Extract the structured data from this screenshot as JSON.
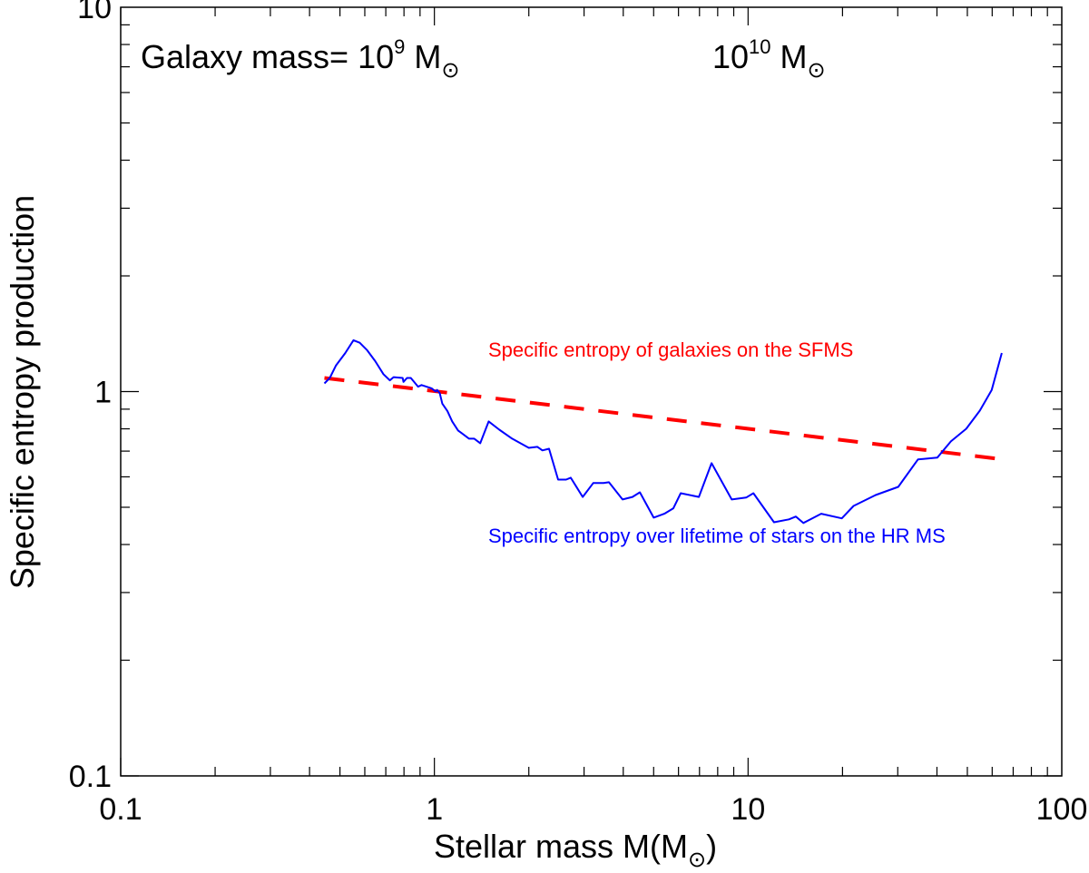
{
  "chart_data": {
    "type": "line",
    "xlabel": {
      "text": "Stellar mass M(M",
      "symbol": "⊙",
      "close": ")"
    },
    "ylabel": "Specific entropy production",
    "xscale": "log",
    "yscale": "log",
    "xlim": [
      0.1,
      100
    ],
    "ylim": [
      0.1,
      10
    ],
    "xticks": [
      "0.1",
      "1",
      "10",
      "100"
    ],
    "yticks": [
      "0.1",
      "1",
      "10"
    ],
    "grid": false,
    "annotations": [
      {
        "text": "Galaxy mass= 10",
        "exp": "9",
        "unit": "M",
        "symbol": "⊙"
      },
      {
        "text": "10",
        "exp": "10",
        "unit": "M",
        "symbol": "⊙"
      }
    ],
    "series": [
      {
        "name": "Specific entropy of galaxies on the SFMS",
        "color": "#ff0000",
        "style": "dashed",
        "x": [
          0.446,
          64.4
        ],
        "y": [
          1.085,
          0.667
        ]
      },
      {
        "name": "Specific entropy over lifetime of stars on the HR MS",
        "color": "#0000ff",
        "style": "solid",
        "x": [
          0.446,
          0.464,
          0.486,
          0.52,
          0.552,
          0.578,
          0.611,
          0.648,
          0.688,
          0.721,
          0.741,
          0.792,
          0.797,
          0.818,
          0.841,
          0.887,
          0.91,
          0.98,
          1.01,
          1.02,
          1.04,
          1.06,
          1.1,
          1.14,
          1.19,
          1.29,
          1.34,
          1.4,
          1.49,
          1.61,
          1.77,
          2.0,
          2.13,
          2.21,
          2.32,
          2.48,
          2.63,
          2.72,
          2.97,
          3.21,
          3.46,
          3.6,
          3.98,
          4.28,
          4.52,
          5.0,
          5.41,
          5.78,
          6.1,
          6.97,
          7.65,
          8.87,
          9.86,
          10.4,
          12.1,
          13.5,
          14.2,
          15.0,
          17.1,
          19.9,
          21.7,
          25.5,
          30.1,
          34.8,
          40.1,
          44.3,
          49.6,
          54.8,
          59.8,
          64.4
        ],
        "y": [
          1.05,
          1.085,
          1.17,
          1.26,
          1.36,
          1.34,
          1.28,
          1.2,
          1.11,
          1.07,
          1.09,
          1.085,
          1.06,
          1.085,
          1.085,
          1.03,
          1.04,
          1.02,
          1.0,
          1.01,
          0.99,
          0.93,
          0.89,
          0.836,
          0.792,
          0.754,
          0.754,
          0.734,
          0.836,
          0.796,
          0.754,
          0.714,
          0.718,
          0.703,
          0.71,
          0.59,
          0.59,
          0.597,
          0.532,
          0.578,
          0.578,
          0.581,
          0.524,
          0.532,
          0.547,
          0.47,
          0.481,
          0.497,
          0.544,
          0.532,
          0.651,
          0.524,
          0.53,
          0.544,
          0.457,
          0.465,
          0.473,
          0.455,
          0.481,
          0.468,
          0.504,
          0.538,
          0.565,
          0.666,
          0.673,
          0.742,
          0.8,
          0.892,
          1.01,
          1.26
        ]
      }
    ]
  }
}
